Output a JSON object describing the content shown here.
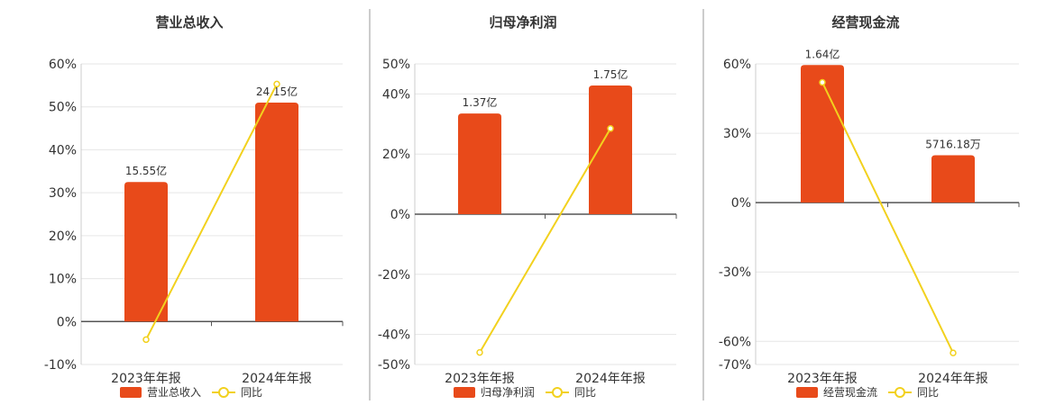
{
  "colors": {
    "bar": "#e84a1a",
    "line": "#f2d11e",
    "axis": "#555555",
    "grid": "#e6e6e6",
    "divider": "#999999"
  },
  "chart_data": [
    {
      "type": "bar",
      "title": "营业总收入",
      "categories": [
        "2023年年报",
        "2024年年报"
      ],
      "series": [
        {
          "name": "营业总收入",
          "type": "bar",
          "values": [
            32.5,
            51.0
          ],
          "labels": [
            "15.55亿",
            "24.15亿"
          ]
        },
        {
          "name": "同比",
          "type": "line",
          "values": [
            -4.2,
            55.3
          ]
        }
      ],
      "yticks": [
        "60%",
        "50%",
        "40%",
        "30%",
        "20%",
        "10%",
        "0%",
        "-10%"
      ],
      "ylim": [
        -10,
        60
      ]
    },
    {
      "type": "bar",
      "title": "归母净利润",
      "categories": [
        "2023年年报",
        "2024年年报"
      ],
      "series": [
        {
          "name": "归母净利润",
          "type": "bar",
          "values": [
            33.5,
            42.8
          ],
          "labels": [
            "1.37亿",
            "1.75亿"
          ]
        },
        {
          "name": "同比",
          "type": "line",
          "values": [
            -46.0,
            28.5
          ]
        }
      ],
      "yticks": [
        "50%",
        "40%",
        "20%",
        "0%",
        "-20%",
        "-40%",
        "-50%"
      ],
      "ylim": [
        -50,
        50
      ]
    },
    {
      "type": "bar",
      "title": "经营现金流",
      "categories": [
        "2023年年报",
        "2024年年报"
      ],
      "series": [
        {
          "name": "经营现金流",
          "type": "bar",
          "values": [
            59.5,
            20.5
          ],
          "labels": [
            "1.64亿",
            "5716.18万"
          ]
        },
        {
          "name": "同比",
          "type": "line",
          "values": [
            52.0,
            -65.0
          ]
        }
      ],
      "yticks": [
        "60%",
        "30%",
        "0%",
        "-30%",
        "-60%",
        "-70%"
      ],
      "ylim": [
        -70,
        60
      ]
    }
  ]
}
